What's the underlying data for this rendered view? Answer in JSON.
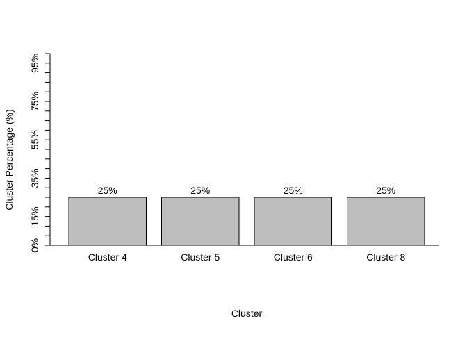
{
  "chart_data": {
    "type": "bar",
    "categories": [
      "Cluster 4",
      "Cluster 5",
      "Cluster 6",
      "Cluster 8"
    ],
    "values": [
      25,
      25,
      25,
      25
    ],
    "data_labels": [
      "25%",
      "25%",
      "25%",
      "25%"
    ],
    "title": "",
    "xlabel": "Cluster",
    "ylabel": "Cluster Percentage (%)",
    "ylim": [
      0,
      100
    ],
    "y_ticks": [
      0,
      5,
      10,
      15,
      20,
      25,
      30,
      35,
      40,
      45,
      50,
      55,
      60,
      65,
      70,
      75,
      80,
      85,
      90,
      95,
      100
    ],
    "y_tick_labels": [
      {
        "value": 0,
        "label": "0%"
      },
      {
        "value": 15,
        "label": "15%"
      },
      {
        "value": 35,
        "label": "35%"
      },
      {
        "value": 55,
        "label": "55%"
      },
      {
        "value": 75,
        "label": "75%"
      },
      {
        "value": 95,
        "label": "95%"
      }
    ],
    "bar_color": "#bebebe",
    "grid": false
  }
}
